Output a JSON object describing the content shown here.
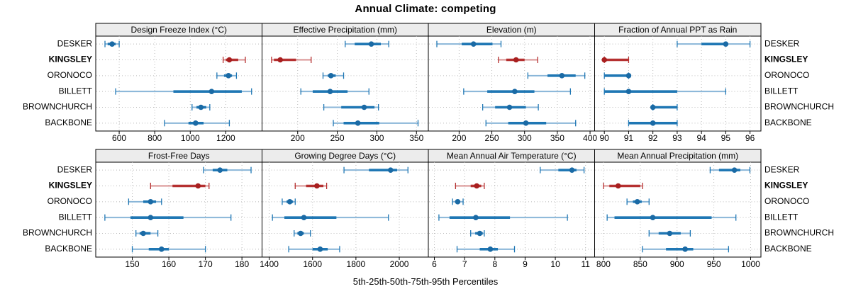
{
  "title": "Annual Climate: competing",
  "caption": "5th-25th-50th-75th-95th Percentiles",
  "percentile_keys": [
    "p5",
    "p25",
    "p50",
    "p75",
    "p95"
  ],
  "stations": [
    {
      "name": "DESKER",
      "highlight": false
    },
    {
      "name": "KINGSLEY",
      "highlight": true
    },
    {
      "name": "ORONOCO",
      "highlight": false
    },
    {
      "name": "BILLETT",
      "highlight": false
    },
    {
      "name": "BROWNCHURCH",
      "highlight": false
    },
    {
      "name": "BACKBONE",
      "highlight": false
    }
  ],
  "colors": {
    "blue_thin": "#8ab6d8",
    "blue_thick": "#1f77b4",
    "blue_dot": "#1a6aa5",
    "red_thin": "#d89090",
    "red_thick": "#b53030",
    "red_dot": "#a81f1f",
    "strip_bg": "#ececec",
    "grid": "#bbbbbb",
    "border": "#000000",
    "text": "#000000"
  },
  "chart_data": [
    {
      "type": "dotplot-interval",
      "title": "Design Freeze Index (°C)",
      "row": 0,
      "col": 0,
      "xlim": [
        468,
        1404
      ],
      "ticks": [
        600,
        800,
        1000,
        1200
      ],
      "series": [
        {
          "name": "DESKER",
          "p5": 520,
          "p25": 535,
          "p50": 560,
          "p75": 580,
          "p95": 600
        },
        {
          "name": "KINGSLEY",
          "p5": 1185,
          "p25": 1200,
          "p50": 1220,
          "p75": 1270,
          "p95": 1310
        },
        {
          "name": "ORONOCO",
          "p5": 1150,
          "p25": 1190,
          "p50": 1215,
          "p75": 1235,
          "p95": 1260
        },
        {
          "name": "BILLETT",
          "p5": 580,
          "p25": 905,
          "p50": 1120,
          "p75": 1290,
          "p95": 1345
        },
        {
          "name": "BROWNCHURCH",
          "p5": 1010,
          "p25": 1035,
          "p50": 1060,
          "p75": 1090,
          "p95": 1110
        },
        {
          "name": "BACKBONE",
          "p5": 855,
          "p25": 990,
          "p50": 1030,
          "p75": 1075,
          "p95": 1220
        }
      ]
    },
    {
      "type": "dotplot-interval",
      "title": "Effective Precipitation (mm)",
      "row": 0,
      "col": 1,
      "xlim": [
        155,
        365
      ],
      "ticks": [
        200,
        250,
        300,
        350
      ],
      "series": [
        {
          "name": "DESKER",
          "p5": 260,
          "p25": 272,
          "p50": 293,
          "p75": 305,
          "p95": 315
        },
        {
          "name": "KINGSLEY",
          "p5": 167,
          "p25": 170,
          "p50": 178,
          "p75": 198,
          "p95": 217
        },
        {
          "name": "ORONOCO",
          "p5": 232,
          "p25": 238,
          "p50": 242,
          "p75": 248,
          "p95": 258
        },
        {
          "name": "BILLETT",
          "p5": 204,
          "p25": 219,
          "p50": 241,
          "p75": 263,
          "p95": 290
        },
        {
          "name": "BROWNCHURCH",
          "p5": 233,
          "p25": 255,
          "p50": 284,
          "p75": 297,
          "p95": 302
        },
        {
          "name": "BACKBONE",
          "p5": 245,
          "p25": 258,
          "p50": 276,
          "p75": 303,
          "p95": 352
        }
      ]
    },
    {
      "type": "dotplot-interval",
      "title": "Elevation (m)",
      "row": 0,
      "col": 2,
      "xlim": [
        153,
        407
      ],
      "ticks": [
        200,
        250,
        300,
        350,
        400
      ],
      "series": [
        {
          "name": "DESKER",
          "p5": 166,
          "p25": 204,
          "p50": 222,
          "p75": 251,
          "p95": 264
        },
        {
          "name": "KINGSLEY",
          "p5": 260,
          "p25": 272,
          "p50": 287,
          "p75": 300,
          "p95": 320
        },
        {
          "name": "ORONOCO",
          "p5": 305,
          "p25": 335,
          "p50": 357,
          "p75": 378,
          "p95": 392
        },
        {
          "name": "BILLETT",
          "p5": 207,
          "p25": 243,
          "p50": 285,
          "p75": 315,
          "p95": 370
        },
        {
          "name": "BROWNCHURCH",
          "p5": 236,
          "p25": 255,
          "p50": 277,
          "p75": 302,
          "p95": 321
        },
        {
          "name": "BACKBONE",
          "p5": 241,
          "p25": 275,
          "p50": 302,
          "p75": 333,
          "p95": 378
        }
      ]
    },
    {
      "type": "dotplot-interval",
      "title": "Fraction of Annual PPT as Rain",
      "row": 0,
      "col": 3,
      "xlim": [
        89.6,
        96.45
      ],
      "ticks": [
        90,
        91,
        92,
        93,
        94,
        95,
        96
      ],
      "series": [
        {
          "name": "DESKER",
          "p5": 93,
          "p25": 94,
          "p50": 95,
          "p75": 95,
          "p95": 96
        },
        {
          "name": "KINGSLEY",
          "p5": 90,
          "p25": 90,
          "p50": 90,
          "p75": 91,
          "p95": 91
        },
        {
          "name": "ORONOCO",
          "p5": 90,
          "p25": 90,
          "p50": 91,
          "p75": 91,
          "p95": 91
        },
        {
          "name": "BILLETT",
          "p5": 90,
          "p25": 90,
          "p50": 91,
          "p75": 93,
          "p95": 95
        },
        {
          "name": "BROWNCHURCH",
          "p5": 92,
          "p25": 92,
          "p50": 92,
          "p75": 93,
          "p95": 93
        },
        {
          "name": "BACKBONE",
          "p5": 91,
          "p25": 91,
          "p50": 92,
          "p75": 93,
          "p95": 93
        }
      ]
    },
    {
      "type": "dotplot-interval",
      "title": "Frost-Free Days",
      "row": 1,
      "col": 0,
      "xlim": [
        140,
        185.5
      ],
      "ticks": [
        150,
        160,
        170,
        180
      ],
      "series": [
        {
          "name": "DESKER",
          "p5": 169.5,
          "p25": 172,
          "p50": 174,
          "p75": 176,
          "p95": 182.5
        },
        {
          "name": "KINGSLEY",
          "p5": 155,
          "p25": 161,
          "p50": 168,
          "p75": 170,
          "p95": 171
        },
        {
          "name": "ORONOCO",
          "p5": 149,
          "p25": 153,
          "p50": 155,
          "p75": 156.5,
          "p95": 158
        },
        {
          "name": "BILLETT",
          "p5": 142.5,
          "p25": 149.5,
          "p50": 155,
          "p75": 164,
          "p95": 177
        },
        {
          "name": "BROWNCHURCH",
          "p5": 151,
          "p25": 152,
          "p50": 153,
          "p75": 155,
          "p95": 157
        },
        {
          "name": "BACKBONE",
          "p5": 150,
          "p25": 154.5,
          "p50": 158,
          "p75": 160,
          "p95": 170
        }
      ]
    },
    {
      "type": "dotplot-interval",
      "title": "Growing Degree Days (°C)",
      "row": 1,
      "col": 1,
      "xlim": [
        1367,
        2134
      ],
      "ticks": [
        1400,
        1600,
        1800,
        2000
      ],
      "series": [
        {
          "name": "DESKER",
          "p5": 1745,
          "p25": 1860,
          "p50": 1960,
          "p75": 1990,
          "p95": 2040
        },
        {
          "name": "KINGSLEY",
          "p5": 1520,
          "p25": 1570,
          "p50": 1620,
          "p75": 1650,
          "p95": 1665
        },
        {
          "name": "ORONOCO",
          "p5": 1460,
          "p25": 1480,
          "p50": 1495,
          "p75": 1510,
          "p95": 1520
        },
        {
          "name": "BILLETT",
          "p5": 1415,
          "p25": 1470,
          "p50": 1560,
          "p75": 1710,
          "p95": 1950
        },
        {
          "name": "BROWNCHURCH",
          "p5": 1515,
          "p25": 1530,
          "p50": 1545,
          "p75": 1560,
          "p95": 1590
        },
        {
          "name": "BACKBONE",
          "p5": 1490,
          "p25": 1600,
          "p50": 1635,
          "p75": 1670,
          "p95": 1725
        }
      ]
    },
    {
      "type": "dotplot-interval",
      "title": "Mean Annual Air Temperature (°C)",
      "row": 1,
      "col": 2,
      "xlim": [
        5.8,
        11.3
      ],
      "ticks": [
        6,
        7,
        8,
        9,
        10,
        11
      ],
      "series": [
        {
          "name": "DESKER",
          "p5": 9.5,
          "p25": 10.1,
          "p50": 10.55,
          "p75": 10.7,
          "p95": 10.95
        },
        {
          "name": "KINGSLEY",
          "p5": 6.7,
          "p25": 7.2,
          "p50": 7.4,
          "p75": 7.55,
          "p95": 7.65
        },
        {
          "name": "ORONOCO",
          "p5": 6.6,
          "p25": 6.7,
          "p50": 6.77,
          "p75": 6.85,
          "p95": 6.95
        },
        {
          "name": "BILLETT",
          "p5": 6.15,
          "p25": 6.5,
          "p50": 7.37,
          "p75": 8.5,
          "p95": 10.4
        },
        {
          "name": "BROWNCHURCH",
          "p5": 7.2,
          "p25": 7.35,
          "p50": 7.5,
          "p75": 7.6,
          "p95": 7.65
        },
        {
          "name": "BACKBONE",
          "p5": 6.75,
          "p25": 7.5,
          "p50": 7.85,
          "p75": 8.1,
          "p95": 8.65
        }
      ]
    },
    {
      "type": "dotplot-interval",
      "title": "Mean Annual Precipitation (mm)",
      "row": 1,
      "col": 3,
      "xlim": [
        788,
        1014
      ],
      "ticks": [
        800,
        850,
        900,
        950,
        1000
      ],
      "series": [
        {
          "name": "DESKER",
          "p5": 945,
          "p25": 957,
          "p50": 978,
          "p75": 986,
          "p95": 999
        },
        {
          "name": "KINGSLEY",
          "p5": 800,
          "p25": 808,
          "p50": 820,
          "p75": 850,
          "p95": 853
        },
        {
          "name": "ORONOCO",
          "p5": 832,
          "p25": 840,
          "p50": 846,
          "p75": 852,
          "p95": 862
        },
        {
          "name": "BILLETT",
          "p5": 805,
          "p25": 815,
          "p50": 867,
          "p75": 947,
          "p95": 980
        },
        {
          "name": "BROWNCHURCH",
          "p5": 862,
          "p25": 875,
          "p50": 890,
          "p75": 905,
          "p95": 918
        },
        {
          "name": "BACKBONE",
          "p5": 853,
          "p25": 885,
          "p50": 911,
          "p75": 922,
          "p95": 970
        }
      ]
    }
  ]
}
